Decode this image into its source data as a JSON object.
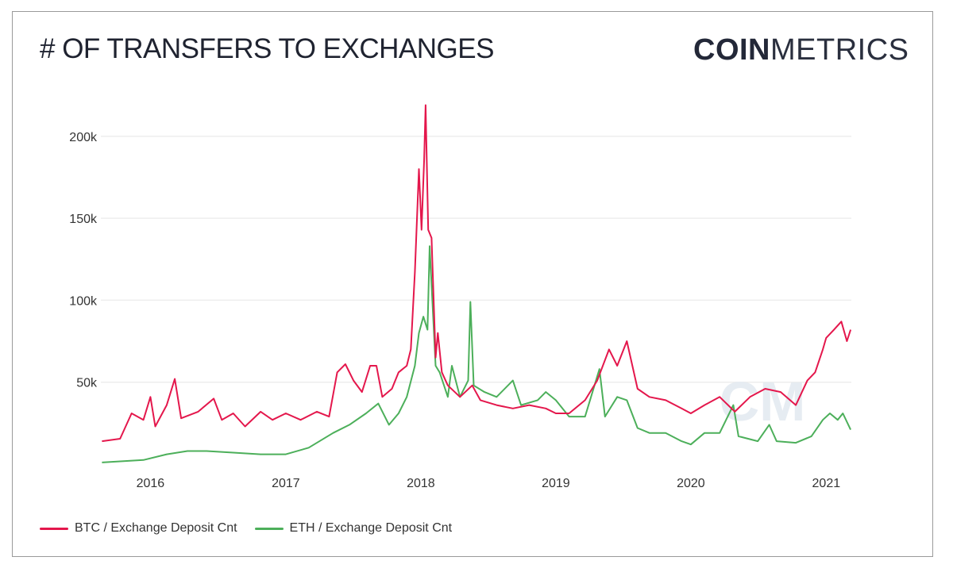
{
  "title": "# OF TRANSFERS TO EXCHANGES",
  "logo": {
    "bold": "COIN",
    "light": "METRICS"
  },
  "chart_data": {
    "type": "line",
    "title": "# OF TRANSFERS TO EXCHANGES",
    "xlabel": "",
    "ylabel": "",
    "x_type": "date",
    "xlim": [
      "2015-08-20",
      "2021-03-10"
    ],
    "ylim": [
      0,
      215000
    ],
    "yticks": [
      {
        "value": 50000,
        "label": "50k"
      },
      {
        "value": 100000,
        "label": "100k"
      },
      {
        "value": 150000,
        "label": "150k"
      },
      {
        "value": 200000,
        "label": "200k"
      }
    ],
    "xticks": [
      {
        "value": "2016-01-01",
        "label": "2016"
      },
      {
        "value": "2017-01-01",
        "label": "2017"
      },
      {
        "value": "2018-01-01",
        "label": "2018"
      },
      {
        "value": "2019-01-01",
        "label": "2019"
      },
      {
        "value": "2020-01-01",
        "label": "2020"
      },
      {
        "value": "2021-01-01",
        "label": "2021"
      }
    ],
    "grid": "horizontal",
    "legend_position": "bottom-left",
    "series": [
      {
        "name": "BTC / Exchange Deposit Cnt",
        "color": "#e4174c",
        "points": [
          [
            "2015-08-23",
            14000
          ],
          [
            "2015-10-11",
            15500
          ],
          [
            "2015-11-11",
            31000
          ],
          [
            "2015-12-13",
            27000
          ],
          [
            "2016-01-01",
            41000
          ],
          [
            "2016-01-14",
            23000
          ],
          [
            "2016-02-14",
            36000
          ],
          [
            "2016-03-07",
            52000
          ],
          [
            "2016-03-24",
            28000
          ],
          [
            "2016-05-09",
            32000
          ],
          [
            "2016-06-20",
            40000
          ],
          [
            "2016-07-12",
            27000
          ],
          [
            "2016-08-12",
            31000
          ],
          [
            "2016-09-13",
            23000
          ],
          [
            "2016-10-25",
            32000
          ],
          [
            "2016-11-26",
            27000
          ],
          [
            "2017-01-01",
            31000
          ],
          [
            "2017-02-10",
            27000
          ],
          [
            "2017-03-26",
            32000
          ],
          [
            "2017-04-28",
            29000
          ],
          [
            "2017-05-20",
            56000
          ],
          [
            "2017-06-11",
            61000
          ],
          [
            "2017-07-03",
            51000
          ],
          [
            "2017-07-26",
            44000
          ],
          [
            "2017-08-17",
            60000
          ],
          [
            "2017-09-03",
            60000
          ],
          [
            "2017-09-19",
            41000
          ],
          [
            "2017-10-15",
            46000
          ],
          [
            "2017-11-02",
            56000
          ],
          [
            "2017-11-24",
            60000
          ],
          [
            "2017-12-05",
            70000
          ],
          [
            "2017-12-16",
            117000
          ],
          [
            "2017-12-27",
            180000
          ],
          [
            "2018-01-03",
            143000
          ],
          [
            "2018-01-10",
            186000
          ],
          [
            "2018-01-14",
            219000
          ],
          [
            "2018-01-21",
            143000
          ],
          [
            "2018-01-30",
            138000
          ],
          [
            "2018-02-10",
            65000
          ],
          [
            "2018-02-16",
            80000
          ],
          [
            "2018-02-27",
            56000
          ],
          [
            "2018-03-15",
            48000
          ],
          [
            "2018-04-17",
            41000
          ],
          [
            "2018-05-20",
            48000
          ],
          [
            "2018-06-11",
            39000
          ],
          [
            "2018-07-25",
            36000
          ],
          [
            "2018-09-07",
            34000
          ],
          [
            "2018-10-21",
            36000
          ],
          [
            "2018-12-05",
            34000
          ],
          [
            "2019-01-01",
            31000
          ],
          [
            "2019-02-06",
            31000
          ],
          [
            "2019-03-21",
            39000
          ],
          [
            "2019-04-23",
            51000
          ],
          [
            "2019-05-25",
            70000
          ],
          [
            "2019-06-16",
            60000
          ],
          [
            "2019-07-12",
            75000
          ],
          [
            "2019-08-10",
            46000
          ],
          [
            "2019-09-11",
            41000
          ],
          [
            "2019-10-25",
            39000
          ],
          [
            "2019-12-07",
            34000
          ],
          [
            "2020-01-01",
            31000
          ],
          [
            "2020-02-07",
            36000
          ],
          [
            "2020-03-19",
            41000
          ],
          [
            "2020-04-29",
            32000
          ],
          [
            "2020-06-09",
            41000
          ],
          [
            "2020-07-20",
            46000
          ],
          [
            "2020-08-31",
            44000
          ],
          [
            "2020-10-11",
            36000
          ],
          [
            "2020-11-11",
            51000
          ],
          [
            "2020-12-02",
            56000
          ],
          [
            "2020-12-23",
            70000
          ],
          [
            "2021-01-01",
            77000
          ],
          [
            "2021-01-22",
            82000
          ],
          [
            "2021-02-11",
            87000
          ],
          [
            "2021-02-26",
            75000
          ],
          [
            "2021-03-08",
            82000
          ]
        ]
      },
      {
        "name": "ETH / Exchange Deposit Cnt",
        "color": "#4caf5a",
        "points": [
          [
            "2015-08-23",
            1000
          ],
          [
            "2015-12-13",
            2500
          ],
          [
            "2016-02-14",
            6000
          ],
          [
            "2016-04-10",
            8000
          ],
          [
            "2016-06-01",
            8000
          ],
          [
            "2016-08-12",
            7000
          ],
          [
            "2016-10-25",
            6000
          ],
          [
            "2017-01-01",
            6000
          ],
          [
            "2017-03-04",
            10000
          ],
          [
            "2017-05-09",
            19000
          ],
          [
            "2017-06-22",
            24000
          ],
          [
            "2017-08-06",
            31000
          ],
          [
            "2017-09-08",
            37000
          ],
          [
            "2017-10-07",
            24000
          ],
          [
            "2017-11-02",
            31000
          ],
          [
            "2017-11-24",
            41000
          ],
          [
            "2017-12-16",
            60000
          ],
          [
            "2017-12-27",
            80000
          ],
          [
            "2018-01-08",
            90000
          ],
          [
            "2018-01-19",
            82000
          ],
          [
            "2018-01-25",
            133000
          ],
          [
            "2018-02-10",
            60000
          ],
          [
            "2018-02-21",
            56000
          ],
          [
            "2018-03-15",
            41000
          ],
          [
            "2018-03-26",
            60000
          ],
          [
            "2018-04-17",
            41000
          ],
          [
            "2018-05-09",
            51000
          ],
          [
            "2018-05-15",
            99000
          ],
          [
            "2018-05-24",
            48000
          ],
          [
            "2018-06-22",
            44000
          ],
          [
            "2018-07-25",
            41000
          ],
          [
            "2018-09-07",
            51000
          ],
          [
            "2018-09-29",
            36000
          ],
          [
            "2018-11-13",
            39000
          ],
          [
            "2018-12-05",
            44000
          ],
          [
            "2019-01-01",
            39000
          ],
          [
            "2019-02-06",
            29000
          ],
          [
            "2019-03-21",
            29000
          ],
          [
            "2019-04-29",
            58000
          ],
          [
            "2019-05-14",
            29000
          ],
          [
            "2019-06-16",
            41000
          ],
          [
            "2019-07-12",
            39000
          ],
          [
            "2019-08-10",
            22000
          ],
          [
            "2019-09-11",
            19000
          ],
          [
            "2019-10-25",
            19000
          ],
          [
            "2019-12-07",
            14000
          ],
          [
            "2020-01-01",
            12000
          ],
          [
            "2020-02-07",
            19000
          ],
          [
            "2020-03-19",
            19000
          ],
          [
            "2020-04-25",
            36000
          ],
          [
            "2020-05-09",
            17000
          ],
          [
            "2020-06-30",
            14000
          ],
          [
            "2020-07-31",
            24000
          ],
          [
            "2020-08-20",
            14000
          ],
          [
            "2020-10-11",
            13000
          ],
          [
            "2020-11-22",
            17000
          ],
          [
            "2020-12-23",
            27000
          ],
          [
            "2021-01-11",
            31000
          ],
          [
            "2021-02-01",
            27000
          ],
          [
            "2021-02-15",
            31000
          ],
          [
            "2021-03-08",
            21000
          ]
        ]
      }
    ]
  }
}
